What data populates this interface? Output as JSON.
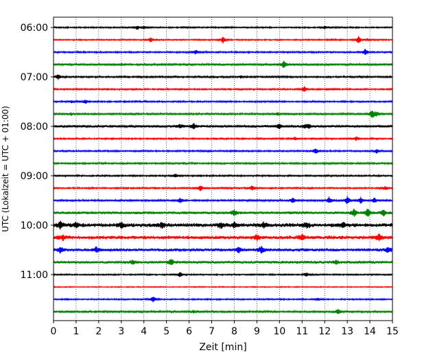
{
  "chart_data": {
    "type": "line",
    "title": "",
    "xlabel": "Zeit  [min]",
    "ylabel": "UTC (Lokalzeit = UTC + 01:00)",
    "xlim": [
      0,
      15
    ],
    "x_ticks": [
      "0",
      "1",
      "2",
      "3",
      "4",
      "5",
      "6",
      "7",
      "8",
      "9",
      "10",
      "11",
      "12",
      "13",
      "14",
      "15"
    ],
    "y_ticks": [
      "06:00",
      "07:00",
      "08:00",
      "09:00",
      "10:00",
      "11:00"
    ],
    "grid": "vertical dotted",
    "trace_interval_minutes": 15,
    "first_trace": "06:00",
    "colors": [
      "#000000",
      "#ff0000",
      "#0000ff",
      "#008000"
    ],
    "traces": [
      {
        "time": "06:00",
        "color": "#000000",
        "noise": 0.8,
        "events": [
          [
            3.7,
            3
          ],
          [
            4.0,
            2.5
          ],
          [
            12.0,
            2
          ]
        ]
      },
      {
        "time": "06:15",
        "color": "#ff0000",
        "noise": 0.8,
        "events": [
          [
            4.3,
            4
          ],
          [
            7.5,
            5
          ],
          [
            12.3,
            1.5
          ],
          [
            13.5,
            6
          ],
          [
            13.9,
            2
          ]
        ]
      },
      {
        "time": "06:30",
        "color": "#0000ff",
        "noise": 0.9,
        "events": [
          [
            6.3,
            3
          ],
          [
            13.8,
            5
          ]
        ]
      },
      {
        "time": "06:45",
        "color": "#008000",
        "noise": 1.2,
        "events": [
          [
            10.2,
            6
          ],
          [
            3.0,
            1.5
          ]
        ]
      },
      {
        "time": "07:00",
        "color": "#000000",
        "noise": 1.0,
        "events": [
          [
            0.2,
            4
          ],
          [
            8.3,
            2
          ]
        ]
      },
      {
        "time": "07:15",
        "color": "#ff0000",
        "noise": 0.9,
        "events": [
          [
            11.1,
            4
          ],
          [
            12.2,
            1.5
          ]
        ]
      },
      {
        "time": "07:30",
        "color": "#0000ff",
        "noise": 0.9,
        "events": [
          [
            1.4,
            3
          ],
          [
            0.8,
            2
          ]
        ]
      },
      {
        "time": "07:45",
        "color": "#008000",
        "noise": 1.1,
        "events": [
          [
            0.8,
            2
          ],
          [
            9.9,
            2
          ],
          [
            14.1,
            6
          ],
          [
            14.3,
            3
          ]
        ]
      },
      {
        "time": "08:00",
        "color": "#000000",
        "noise": 1.4,
        "events": [
          [
            5.6,
            3
          ],
          [
            6.2,
            4
          ],
          [
            10.0,
            3
          ],
          [
            11.1,
            3
          ],
          [
            11.3,
            3
          ]
        ]
      },
      {
        "time": "08:15",
        "color": "#ff0000",
        "noise": 0.9,
        "events": [
          [
            10.7,
            2
          ],
          [
            13.4,
            3
          ]
        ]
      },
      {
        "time": "08:30",
        "color": "#0000ff",
        "noise": 0.9,
        "events": [
          [
            11.6,
            4
          ],
          [
            14.3,
            3
          ]
        ]
      },
      {
        "time": "08:45",
        "color": "#008000",
        "noise": 1.0,
        "events": []
      },
      {
        "time": "09:00",
        "color": "#000000",
        "noise": 0.9,
        "events": [
          [
            5.4,
            3
          ]
        ]
      },
      {
        "time": "09:15",
        "color": "#ff0000",
        "noise": 0.9,
        "events": [
          [
            6.5,
            5
          ],
          [
            8.8,
            4
          ],
          [
            14.7,
            3
          ]
        ]
      },
      {
        "time": "09:30",
        "color": "#0000ff",
        "noise": 1.0,
        "events": [
          [
            5.6,
            4
          ],
          [
            10.6,
            4
          ],
          [
            12.2,
            5
          ],
          [
            13.0,
            6
          ],
          [
            13.6,
            5
          ],
          [
            14.2,
            4
          ]
        ]
      },
      {
        "time": "09:45",
        "color": "#008000",
        "noise": 1.5,
        "events": [
          [
            8.0,
            5
          ],
          [
            13.3,
            6
          ],
          [
            13.9,
            7
          ],
          [
            14.6,
            5
          ]
        ]
      },
      {
        "time": "10:00",
        "color": "#000000",
        "noise": 2.2,
        "events": [
          [
            0.3,
            6
          ],
          [
            1.0,
            4
          ],
          [
            3.0,
            4
          ],
          [
            4.8,
            4
          ],
          [
            7.4,
            4
          ],
          [
            8.0,
            4
          ],
          [
            9.3,
            4
          ],
          [
            11.2,
            4
          ],
          [
            12.8,
            4
          ]
        ]
      },
      {
        "time": "10:15",
        "color": "#ff0000",
        "noise": 2.0,
        "events": [
          [
            0.4,
            4
          ],
          [
            9.0,
            4
          ],
          [
            11.0,
            4
          ],
          [
            14.4,
            5
          ]
        ]
      },
      {
        "time": "10:30",
        "color": "#0000ff",
        "noise": 1.8,
        "events": [
          [
            0.3,
            5
          ],
          [
            1.9,
            4
          ],
          [
            8.2,
            4
          ],
          [
            9.2,
            5
          ],
          [
            14.8,
            4
          ]
        ]
      },
      {
        "time": "10:45",
        "color": "#008000",
        "noise": 1.5,
        "events": [
          [
            5.2,
            5
          ],
          [
            3.5,
            3
          ],
          [
            12.5,
            3
          ]
        ]
      },
      {
        "time": "11:00",
        "color": "#000000",
        "noise": 0.8,
        "events": [
          [
            5.6,
            4
          ],
          [
            11.2,
            3
          ]
        ]
      },
      {
        "time": "11:15",
        "color": "#ff0000",
        "noise": 0.6,
        "events": []
      },
      {
        "time": "11:30",
        "color": "#0000ff",
        "noise": 0.8,
        "events": [
          [
            4.4,
            5
          ],
          [
            11.7,
            2
          ]
        ]
      },
      {
        "time": "11:45",
        "color": "#008000",
        "noise": 1.1,
        "events": [
          [
            12.6,
            4
          ],
          [
            6.2,
            2
          ]
        ]
      }
    ]
  }
}
